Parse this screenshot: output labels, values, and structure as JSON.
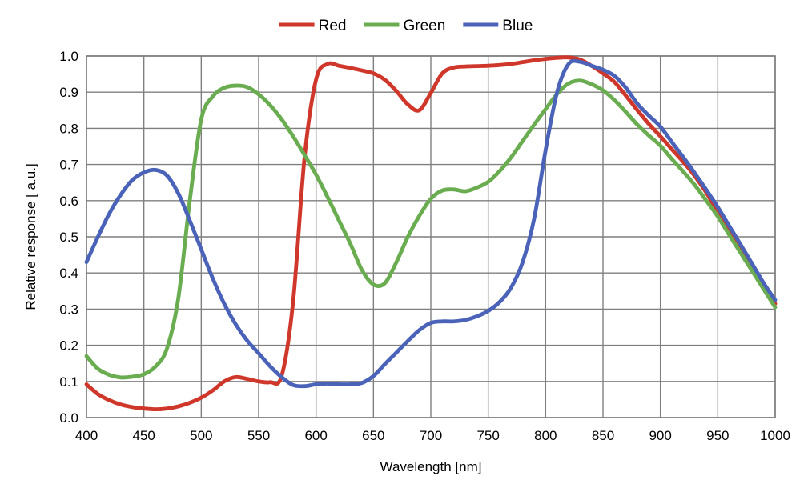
{
  "chart_data": {
    "type": "line",
    "title": "",
    "xlabel": "Wavelength [nm]",
    "ylabel": "Relative response [ a.u.]",
    "xlim": [
      400,
      1000
    ],
    "ylim": [
      0.0,
      1.0
    ],
    "grid": true,
    "legend_position": "top-center",
    "x_tick_labels": [
      "400",
      "450",
      "500",
      "550",
      "600",
      "650",
      "700",
      "750",
      "800",
      "850",
      "900",
      "950",
      "1000"
    ],
    "y_tick_labels": [
      "0.0",
      "0.1",
      "0.2",
      "0.3",
      "0.4",
      "0.5",
      "0.6",
      "0.7",
      "0.8",
      "0.9",
      "1.0"
    ],
    "x": [
      400,
      410,
      420,
      430,
      440,
      450,
      460,
      470,
      480,
      490,
      500,
      510,
      520,
      530,
      540,
      550,
      560,
      570,
      580,
      590,
      600,
      610,
      620,
      630,
      640,
      650,
      660,
      670,
      680,
      690,
      700,
      710,
      720,
      730,
      740,
      750,
      760,
      770,
      780,
      790,
      800,
      810,
      820,
      830,
      840,
      850,
      860,
      870,
      880,
      890,
      900,
      910,
      920,
      930,
      940,
      950,
      960,
      970,
      980,
      990,
      1000
    ],
    "series": [
      {
        "name": "Red",
        "color": "#d0372b",
        "values": [
          0.092,
          0.065,
          0.048,
          0.036,
          0.029,
          0.025,
          0.023,
          0.025,
          0.031,
          0.041,
          0.055,
          0.075,
          0.1,
          0.112,
          0.107,
          0.1,
          0.098,
          0.115,
          0.32,
          0.72,
          0.935,
          0.978,
          0.973,
          0.967,
          0.96,
          0.952,
          0.934,
          0.903,
          0.866,
          0.85,
          0.898,
          0.952,
          0.968,
          0.971,
          0.972,
          0.973,
          0.975,
          0.978,
          0.983,
          0.988,
          0.992,
          0.995,
          0.996,
          0.99,
          0.973,
          0.952,
          0.928,
          0.89,
          0.85,
          0.812,
          0.778,
          0.742,
          0.707,
          0.668,
          0.622,
          0.568,
          0.515,
          0.464,
          0.414,
          0.364,
          0.315
        ]
      },
      {
        "name": "Green",
        "color": "#6aac50",
        "values": [
          0.17,
          0.135,
          0.118,
          0.111,
          0.113,
          0.12,
          0.141,
          0.19,
          0.33,
          0.6,
          0.825,
          0.888,
          0.912,
          0.918,
          0.914,
          0.894,
          0.864,
          0.825,
          0.778,
          0.726,
          0.672,
          0.61,
          0.545,
          0.48,
          0.408,
          0.368,
          0.372,
          0.43,
          0.5,
          0.558,
          0.605,
          0.628,
          0.631,
          0.626,
          0.636,
          0.652,
          0.682,
          0.72,
          0.765,
          0.81,
          0.853,
          0.895,
          0.924,
          0.932,
          0.922,
          0.905,
          0.878,
          0.845,
          0.81,
          0.78,
          0.752,
          0.715,
          0.68,
          0.643,
          0.6,
          0.556,
          0.505,
          0.455,
          0.405,
          0.355,
          0.305
        ]
      },
      {
        "name": "Blue",
        "color": "#4a63b8",
        "values": [
          0.43,
          0.5,
          0.565,
          0.617,
          0.657,
          0.678,
          0.685,
          0.67,
          0.62,
          0.545,
          0.465,
          0.385,
          0.315,
          0.258,
          0.213,
          0.178,
          0.142,
          0.112,
          0.09,
          0.087,
          0.092,
          0.094,
          0.092,
          0.092,
          0.096,
          0.115,
          0.148,
          0.18,
          0.212,
          0.242,
          0.262,
          0.266,
          0.266,
          0.27,
          0.28,
          0.295,
          0.32,
          0.36,
          0.43,
          0.55,
          0.74,
          0.9,
          0.978,
          0.984,
          0.973,
          0.962,
          0.945,
          0.912,
          0.868,
          0.835,
          0.805,
          0.762,
          0.72,
          0.676,
          0.63,
          0.582,
          0.53,
          0.478,
          0.425,
          0.372,
          0.325
        ]
      }
    ],
    "colors": {
      "grid": "#7f7f7f",
      "border": "#7f7f7f",
      "text": "#000000",
      "background": "#ffffff"
    }
  }
}
